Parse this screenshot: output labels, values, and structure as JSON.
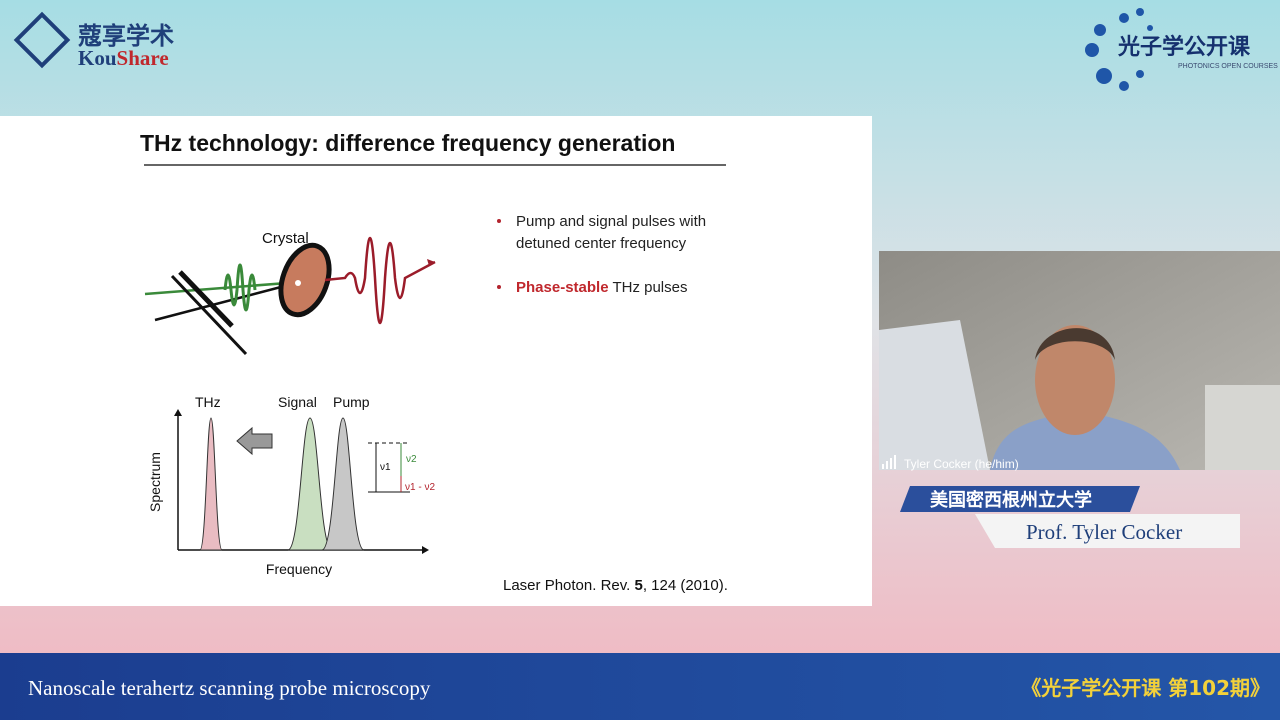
{
  "header": {
    "brand_cn": "蔻享学术",
    "brand_en_a": "Kou",
    "brand_en_b": "Share",
    "course_cn": "光子学公开课",
    "course_en": "PHOTONICS OPEN COURSES"
  },
  "slide": {
    "title": "THz technology: difference frequency generation",
    "crystal": "Crystal",
    "bullets": [
      "Pump and signal pulses with",
      "detuned center frequency"
    ],
    "bullet2_highlight": "Phase-stable",
    "bullet2_rest": " THz pulses",
    "spectrum": {
      "thz": "THz",
      "signal": "Signal",
      "pump": "Pump",
      "ylabel": "Spectrum",
      "xlabel": "Frequency",
      "nu1": "ν1",
      "nu2": "ν2",
      "diff": "ν1 - ν2"
    },
    "reference": {
      "a": "Laser Photon. Rev. ",
      "b": "5",
      "c": ", 124 (2010)."
    }
  },
  "webcam": {
    "name": "Tyler Cocker (he/him)"
  },
  "speaker": {
    "affiliation": "美国密西根州立大学",
    "name": "Prof. Tyler Cocker"
  },
  "footer": {
    "talk": "Nanoscale terahertz scanning probe microscopy",
    "series": "《光子学公开课  第102期》"
  }
}
